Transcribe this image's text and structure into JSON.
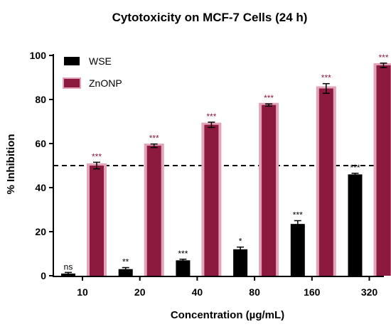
{
  "chart_data": {
    "type": "bar",
    "title": "Cytotoxicity on MCF-7 Cells (24 h)",
    "xlabel": "Concentration (µg/mL)",
    "ylabel": "% Inhibition",
    "ylim": [
      0,
      100
    ],
    "yticks": [
      0,
      20,
      40,
      60,
      80,
      100
    ],
    "categories": [
      "10",
      "20",
      "40",
      "80",
      "160",
      "320"
    ],
    "reference_line": 50,
    "grid": false,
    "legend_position": "top-left",
    "series": [
      {
        "name": "WSE",
        "color": "#000000",
        "values": [
          1,
          3,
          7,
          12,
          23.5,
          46
        ],
        "errors": [
          0.5,
          0.7,
          0.5,
          1,
          1.5,
          0.5
        ],
        "significance": [
          "ns",
          "**",
          "***",
          "*",
          "***",
          "***"
        ]
      },
      {
        "name": "ZnONP",
        "color": "#8b1a3e",
        "halo_color": "#e3a3b9",
        "values": [
          50,
          59,
          68.5,
          77.5,
          85,
          95.5
        ],
        "errors": [
          1.5,
          0.8,
          1.2,
          0.5,
          2.2,
          1
        ],
        "significance": [
          "***",
          "***",
          "***",
          "***",
          "***",
          "***"
        ]
      }
    ]
  }
}
